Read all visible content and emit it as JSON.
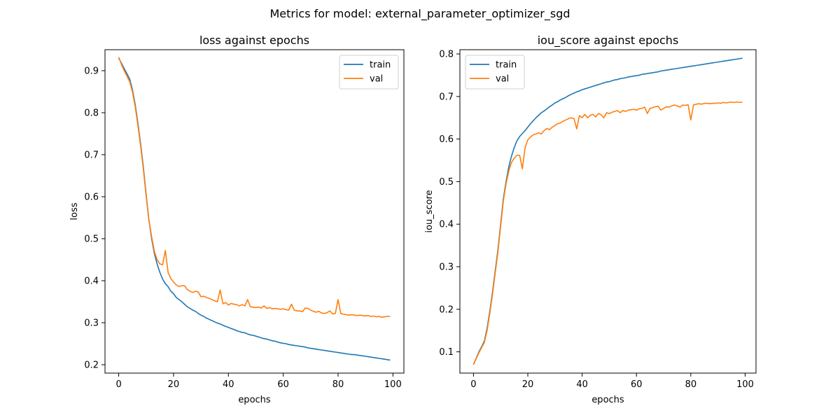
{
  "figure": {
    "suptitle": "Metrics for model: external_parameter_optimizer_sgd"
  },
  "colors": {
    "train": "#1f77b4",
    "val": "#ff7f0e"
  },
  "chart_data": [
    {
      "type": "line",
      "title": "loss against epochs",
      "xlabel": "epochs",
      "ylabel": "loss",
      "xlim": [
        -5,
        104
      ],
      "ylim": [
        0.18,
        0.95
      ],
      "xticks": [
        0,
        20,
        40,
        60,
        80,
        100
      ],
      "yticks": [
        0.2,
        0.3,
        0.4,
        0.5,
        0.6,
        0.7,
        0.8,
        0.9
      ],
      "legend": "top-right",
      "grid": false,
      "series": [
        {
          "name": "train",
          "color": "#1f77b4",
          "x": [
            0,
            1,
            2,
            3,
            4,
            5,
            6,
            7,
            8,
            9,
            10,
            11,
            12,
            13,
            14,
            15,
            16,
            17,
            18,
            19,
            20,
            21,
            22,
            23,
            24,
            25,
            26,
            27,
            28,
            29,
            30,
            31,
            32,
            33,
            34,
            35,
            36,
            37,
            38,
            39,
            40,
            41,
            42,
            43,
            44,
            45,
            46,
            47,
            48,
            49,
            50,
            51,
            52,
            53,
            54,
            55,
            56,
            57,
            58,
            59,
            60,
            61,
            62,
            63,
            64,
            65,
            66,
            67,
            68,
            69,
            70,
            71,
            72,
            73,
            74,
            75,
            76,
            77,
            78,
            79,
            80,
            81,
            82,
            83,
            84,
            85,
            86,
            87,
            88,
            89,
            90,
            91,
            92,
            93,
            94,
            95,
            96,
            97,
            98,
            99
          ],
          "y": [
            0.93,
            0.918,
            0.905,
            0.893,
            0.88,
            0.855,
            0.82,
            0.775,
            0.725,
            0.67,
            0.605,
            0.545,
            0.5,
            0.465,
            0.44,
            0.42,
            0.404,
            0.393,
            0.386,
            0.375,
            0.369,
            0.36,
            0.355,
            0.35,
            0.344,
            0.338,
            0.334,
            0.33,
            0.327,
            0.322,
            0.318,
            0.315,
            0.311,
            0.308,
            0.305,
            0.302,
            0.299,
            0.297,
            0.294,
            0.291,
            0.289,
            0.286,
            0.284,
            0.281,
            0.279,
            0.277,
            0.276,
            0.273,
            0.271,
            0.27,
            0.268,
            0.266,
            0.264,
            0.262,
            0.261,
            0.259,
            0.257,
            0.256,
            0.254,
            0.252,
            0.251,
            0.25,
            0.248,
            0.247,
            0.246,
            0.245,
            0.244,
            0.243,
            0.242,
            0.24,
            0.239,
            0.238,
            0.237,
            0.236,
            0.235,
            0.234,
            0.233,
            0.232,
            0.231,
            0.23,
            0.229,
            0.228,
            0.227,
            0.226,
            0.225,
            0.224,
            0.224,
            0.223,
            0.222,
            0.221,
            0.22,
            0.219,
            0.218,
            0.217,
            0.216,
            0.215,
            0.214,
            0.213,
            0.212,
            0.211
          ]
        },
        {
          "name": "val",
          "color": "#ff7f0e",
          "x": [
            0,
            1,
            2,
            3,
            4,
            5,
            6,
            7,
            8,
            9,
            10,
            11,
            12,
            13,
            14,
            15,
            16,
            17,
            18,
            19,
            20,
            21,
            22,
            23,
            24,
            25,
            26,
            27,
            28,
            29,
            30,
            31,
            32,
            33,
            34,
            35,
            36,
            37,
            38,
            39,
            40,
            41,
            42,
            43,
            44,
            45,
            46,
            47,
            48,
            49,
            50,
            51,
            52,
            53,
            54,
            55,
            56,
            57,
            58,
            59,
            60,
            61,
            62,
            63,
            64,
            65,
            66,
            67,
            68,
            69,
            70,
            71,
            72,
            73,
            74,
            75,
            76,
            77,
            78,
            79,
            80,
            81,
            82,
            83,
            84,
            85,
            86,
            87,
            88,
            89,
            90,
            91,
            92,
            93,
            94,
            95,
            96,
            97,
            98,
            99
          ],
          "y": [
            0.932,
            0.915,
            0.9,
            0.887,
            0.874,
            0.85,
            0.815,
            0.77,
            0.72,
            0.665,
            0.602,
            0.545,
            0.505,
            0.47,
            0.45,
            0.44,
            0.438,
            0.472,
            0.42,
            0.405,
            0.397,
            0.39,
            0.386,
            0.388,
            0.388,
            0.379,
            0.375,
            0.372,
            0.375,
            0.373,
            0.362,
            0.363,
            0.36,
            0.358,
            0.355,
            0.352,
            0.35,
            0.378,
            0.345,
            0.348,
            0.342,
            0.346,
            0.344,
            0.343,
            0.34,
            0.343,
            0.34,
            0.355,
            0.338,
            0.337,
            0.336,
            0.337,
            0.335,
            0.34,
            0.334,
            0.336,
            0.333,
            0.334,
            0.333,
            0.332,
            0.333,
            0.331,
            0.33,
            0.344,
            0.33,
            0.328,
            0.328,
            0.326,
            0.335,
            0.334,
            0.33,
            0.327,
            0.325,
            0.327,
            0.323,
            0.322,
            0.324,
            0.328,
            0.321,
            0.322,
            0.355,
            0.322,
            0.32,
            0.319,
            0.318,
            0.319,
            0.318,
            0.317,
            0.318,
            0.317,
            0.316,
            0.317,
            0.315,
            0.316,
            0.314,
            0.315,
            0.313,
            0.314,
            0.315,
            0.315
          ]
        }
      ]
    },
    {
      "type": "line",
      "title": "iou_score against epochs",
      "xlabel": "epochs",
      "ylabel": "iou_score",
      "xlim": [
        -5,
        104
      ],
      "ylim": [
        0.05,
        0.81
      ],
      "xticks": [
        0,
        20,
        40,
        60,
        80,
        100
      ],
      "yticks": [
        0.1,
        0.2,
        0.3,
        0.4,
        0.5,
        0.6,
        0.7,
        0.8
      ],
      "legend": "top-left",
      "grid": false,
      "series": [
        {
          "name": "train",
          "color": "#1f77b4",
          "x": [
            0,
            1,
            2,
            3,
            4,
            5,
            6,
            7,
            8,
            9,
            10,
            11,
            12,
            13,
            14,
            15,
            16,
            17,
            18,
            19,
            20,
            21,
            22,
            23,
            24,
            25,
            26,
            27,
            28,
            29,
            30,
            31,
            32,
            33,
            34,
            35,
            36,
            37,
            38,
            39,
            40,
            41,
            42,
            43,
            44,
            45,
            46,
            47,
            48,
            49,
            50,
            51,
            52,
            53,
            54,
            55,
            56,
            57,
            58,
            59,
            60,
            61,
            62,
            63,
            64,
            65,
            66,
            67,
            68,
            69,
            70,
            71,
            72,
            73,
            74,
            75,
            76,
            77,
            78,
            79,
            80,
            81,
            82,
            83,
            84,
            85,
            86,
            87,
            88,
            89,
            90,
            91,
            92,
            93,
            94,
            95,
            96,
            97,
            98,
            99
          ],
          "y": [
            0.07,
            0.085,
            0.1,
            0.112,
            0.125,
            0.155,
            0.195,
            0.24,
            0.29,
            0.34,
            0.4,
            0.46,
            0.5,
            0.535,
            0.56,
            0.58,
            0.596,
            0.606,
            0.613,
            0.62,
            0.628,
            0.636,
            0.643,
            0.65,
            0.656,
            0.662,
            0.666,
            0.671,
            0.676,
            0.68,
            0.685,
            0.688,
            0.692,
            0.695,
            0.698,
            0.702,
            0.705,
            0.708,
            0.711,
            0.713,
            0.716,
            0.718,
            0.72,
            0.722,
            0.724,
            0.726,
            0.728,
            0.73,
            0.732,
            0.734,
            0.735,
            0.737,
            0.739,
            0.74,
            0.742,
            0.743,
            0.744,
            0.746,
            0.747,
            0.748,
            0.749,
            0.75,
            0.752,
            0.753,
            0.754,
            0.755,
            0.756,
            0.757,
            0.758,
            0.76,
            0.761,
            0.762,
            0.763,
            0.764,
            0.765,
            0.766,
            0.767,
            0.768,
            0.769,
            0.77,
            0.771,
            0.772,
            0.773,
            0.774,
            0.775,
            0.776,
            0.777,
            0.778,
            0.779,
            0.78,
            0.781,
            0.782,
            0.783,
            0.784,
            0.785,
            0.786,
            0.787,
            0.788,
            0.789,
            0.79
          ]
        },
        {
          "name": "val",
          "color": "#ff7f0e",
          "x": [
            0,
            1,
            2,
            3,
            4,
            5,
            6,
            7,
            8,
            9,
            10,
            11,
            12,
            13,
            14,
            15,
            16,
            17,
            18,
            19,
            20,
            21,
            22,
            23,
            24,
            25,
            26,
            27,
            28,
            29,
            30,
            31,
            32,
            33,
            34,
            35,
            36,
            37,
            38,
            39,
            40,
            41,
            42,
            43,
            44,
            45,
            46,
            47,
            48,
            49,
            50,
            51,
            52,
            53,
            54,
            55,
            56,
            57,
            58,
            59,
            60,
            61,
            62,
            63,
            64,
            65,
            66,
            67,
            68,
            69,
            70,
            71,
            72,
            73,
            74,
            75,
            76,
            77,
            78,
            79,
            80,
            81,
            82,
            83,
            84,
            85,
            86,
            87,
            88,
            89,
            90,
            91,
            92,
            93,
            94,
            95,
            96,
            97,
            98,
            99
          ],
          "y": [
            0.07,
            0.084,
            0.098,
            0.11,
            0.122,
            0.15,
            0.19,
            0.235,
            0.285,
            0.335,
            0.395,
            0.455,
            0.495,
            0.525,
            0.545,
            0.555,
            0.562,
            0.562,
            0.53,
            0.58,
            0.598,
            0.605,
            0.61,
            0.612,
            0.615,
            0.612,
            0.62,
            0.625,
            0.622,
            0.628,
            0.632,
            0.636,
            0.638,
            0.642,
            0.645,
            0.648,
            0.65,
            0.648,
            0.624,
            0.655,
            0.65,
            0.658,
            0.65,
            0.656,
            0.658,
            0.652,
            0.66,
            0.657,
            0.65,
            0.662,
            0.66,
            0.663,
            0.665,
            0.667,
            0.662,
            0.667,
            0.665,
            0.668,
            0.669,
            0.67,
            0.668,
            0.671,
            0.672,
            0.675,
            0.66,
            0.672,
            0.674,
            0.676,
            0.677,
            0.668,
            0.672,
            0.676,
            0.675,
            0.678,
            0.68,
            0.678,
            0.675,
            0.68,
            0.679,
            0.681,
            0.645,
            0.68,
            0.682,
            0.683,
            0.682,
            0.684,
            0.684,
            0.683,
            0.684,
            0.684,
            0.685,
            0.684,
            0.686,
            0.685,
            0.686,
            0.687,
            0.686,
            0.687,
            0.686,
            0.687
          ]
        }
      ]
    }
  ]
}
